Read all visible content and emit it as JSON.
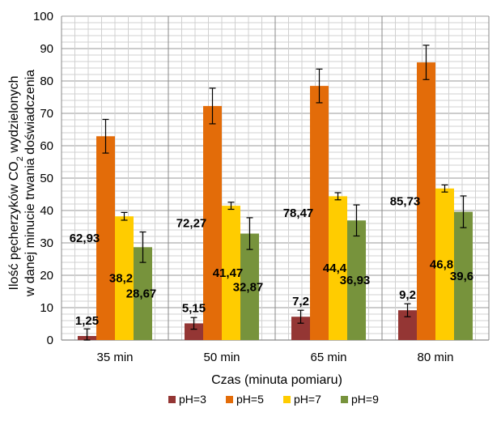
{
  "chart_data": {
    "type": "bar",
    "categories": [
      "35 min",
      "50 min",
      "65 min",
      "80 min"
    ],
    "series": [
      {
        "name": "pH=3",
        "color": "#943634",
        "values": [
          1.25,
          5.15,
          7.2,
          9.2
        ],
        "errors": [
          2.2,
          1.8,
          2.0,
          2.0
        ]
      },
      {
        "name": "pH=5",
        "color": "#e36c09",
        "values": [
          62.93,
          72.27,
          78.47,
          85.73
        ],
        "errors": [
          5.2,
          5.5,
          5.2,
          5.3
        ]
      },
      {
        "name": "pH=7",
        "color": "#ffcc00",
        "values": [
          38.2,
          41.47,
          44.4,
          46.8
        ],
        "errors": [
          1.2,
          1.1,
          1.1,
          1.1
        ]
      },
      {
        "name": "pH=9",
        "color": "#77933c",
        "values": [
          28.67,
          32.87,
          36.93,
          39.6
        ],
        "errors": [
          4.7,
          4.9,
          4.8,
          4.9
        ]
      }
    ],
    "data_labels": [
      [
        "1,25",
        "5,15",
        "7,2",
        "9,2"
      ],
      [
        "62,93",
        "72,27",
        "78,47",
        "85,73"
      ],
      [
        "38,2",
        "41,47",
        "44,4",
        "46,8"
      ],
      [
        "28,67",
        "32,87",
        "36,93",
        "39,6"
      ]
    ],
    "y_ticks": [
      "0",
      "10",
      "20",
      "30",
      "40",
      "50",
      "60",
      "70",
      "80",
      "90",
      "100"
    ],
    "ylim": [
      0,
      100
    ],
    "xlabel": "Czas (minuta pomiaru)",
    "ylabel_line1": "Ilość pęcherzyków CO",
    "ylabel_sub": "2",
    "ylabel_line1_rest": " wydzielonych",
    "ylabel_line2": "w danej minucie  trwania  doświadczenia",
    "legend_position": "bottom",
    "grid": true
  }
}
